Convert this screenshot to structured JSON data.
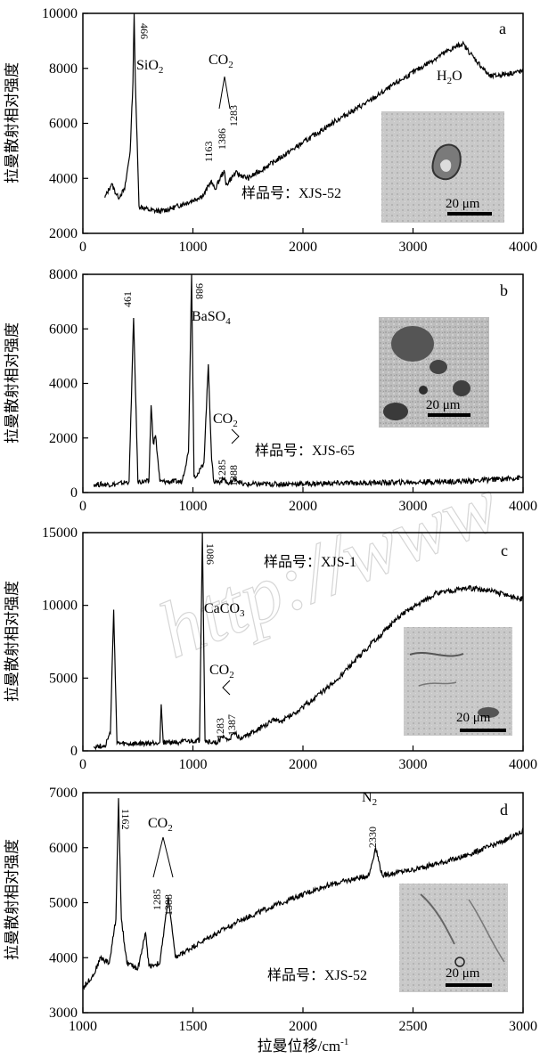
{
  "chart_data": [
    {
      "panel": "a",
      "type": "line",
      "ylabel": "拉曼散射相对强度",
      "xlim": [
        0,
        4000
      ],
      "ylim": [
        2000,
        10000
      ],
      "xticks": [
        0,
        1000,
        2000,
        3000,
        4000
      ],
      "yticks": [
        2000,
        4000,
        6000,
        8000,
        10000
      ],
      "x": [
        200,
        260,
        320,
        380,
        430,
        455,
        466,
        477,
        510,
        600,
        700,
        800,
        900,
        1000,
        1100,
        1163,
        1200,
        1283,
        1300,
        1386,
        1500,
        1700,
        2000,
        2300,
        2600,
        2900,
        3100,
        3300,
        3450,
        3550,
        3700,
        3850,
        4000
      ],
      "y": [
        3300,
        3800,
        3300,
        3600,
        5000,
        7500,
        10000,
        7500,
        3000,
        2850,
        2800,
        2900,
        3050,
        3200,
        3400,
        3900,
        3600,
        4300,
        3750,
        4200,
        4000,
        4500,
        5300,
        6100,
        6800,
        7600,
        8100,
        8600,
        8900,
        8400,
        7700,
        7800,
        7900
      ],
      "sample_label": "样品号：XJS-52",
      "compound_labels": [
        {
          "text": "SiO",
          "sub": "2"
        },
        {
          "text": "CO",
          "sub": "2"
        },
        {
          "text": "H",
          "sub": "2",
          "tail": "O"
        }
      ],
      "peak_labels": [
        "466",
        "1163",
        "1386",
        "1283"
      ],
      "scale_bar": "20 μm"
    },
    {
      "panel": "b",
      "type": "line",
      "ylabel": "拉曼散射相对强度",
      "xlim": [
        0,
        4000
      ],
      "ylim": [
        0,
        8000
      ],
      "xticks": [
        0,
        1000,
        2000,
        3000,
        4000
      ],
      "yticks": [
        0,
        2000,
        4000,
        6000,
        8000
      ],
      "x": [
        100,
        300,
        420,
        461,
        500,
        600,
        620,
        640,
        660,
        700,
        900,
        960,
        988,
        1010,
        1050,
        1100,
        1140,
        1170,
        1190,
        1250,
        1285,
        1320,
        1388,
        1450,
        2000,
        2500,
        3000,
        3500,
        4000
      ],
      "y": [
        300,
        300,
        400,
        6400,
        400,
        400,
        3200,
        1800,
        2100,
        400,
        400,
        1500,
        8000,
        600,
        700,
        1100,
        4700,
        1200,
        400,
        400,
        500,
        300,
        500,
        300,
        320,
        350,
        380,
        420,
        550
      ],
      "sample_label": "样品号：XJS-65",
      "compound_labels": [
        {
          "text": "BaSO",
          "sub": "4"
        },
        {
          "text": "CO",
          "sub": "2"
        }
      ],
      "peak_labels": [
        "461",
        "988",
        "1285",
        "1388"
      ],
      "scale_bar": "20 μm"
    },
    {
      "panel": "c",
      "type": "line",
      "ylabel": "拉曼散射相对强度",
      "xlim": [
        0,
        4000
      ],
      "ylim": [
        0,
        15000
      ],
      "xticks": [
        0,
        1000,
        2000,
        3000,
        4000
      ],
      "yticks": [
        0,
        5000,
        10000,
        15000
      ],
      "x": [
        100,
        200,
        250,
        280,
        310,
        400,
        600,
        700,
        712,
        730,
        900,
        1060,
        1086,
        1110,
        1200,
        1283,
        1310,
        1387,
        1420,
        1500,
        1600,
        1750,
        1800,
        2000,
        2300,
        2600,
        2900,
        3200,
        3500,
        3700,
        4000
      ],
      "y": [
        300,
        350,
        1200,
        9700,
        500,
        450,
        500,
        600,
        3200,
        600,
        600,
        700,
        15000,
        700,
        500,
        1000,
        700,
        1200,
        900,
        1100,
        1500,
        2200,
        2000,
        3000,
        4800,
        7200,
        9400,
        10800,
        11200,
        11000,
        10400
      ],
      "sample_label": "样品号：XJS-1",
      "compound_labels": [
        {
          "text": "CaCO",
          "sub": "3"
        },
        {
          "text": "CO",
          "sub": "2"
        }
      ],
      "peak_labels": [
        "1086",
        "1283",
        "1387"
      ],
      "scale_bar": "20 μm"
    },
    {
      "panel": "d",
      "type": "line",
      "ylabel": "拉曼散射相对强度",
      "xlabel": "拉曼位移/cm",
      "xlabel_sup": "-1",
      "xlim": [
        1000,
        3000
      ],
      "ylim": [
        3000,
        7000
      ],
      "xticks": [
        1000,
        1500,
        2000,
        2500,
        3000
      ],
      "yticks": [
        3000,
        4000,
        5000,
        6000,
        7000
      ],
      "x": [
        1000,
        1050,
        1080,
        1120,
        1150,
        1162,
        1175,
        1200,
        1250,
        1285,
        1300,
        1350,
        1388,
        1420,
        1500,
        1700,
        1900,
        2100,
        2300,
        2330,
        2360,
        2500,
        2700,
        2900,
        3000
      ],
      "y": [
        3450,
        3700,
        4000,
        3900,
        4700,
        6900,
        4700,
        3900,
        3800,
        4450,
        3850,
        3900,
        5100,
        4000,
        4200,
        4650,
        5000,
        5300,
        5500,
        6000,
        5500,
        5600,
        5800,
        6100,
        6300
      ],
      "sample_label": "样品号：XJS-52",
      "compound_labels": [
        {
          "text": "CO",
          "sub": "2"
        },
        {
          "text": "N",
          "sub": "2"
        }
      ],
      "peak_labels": [
        "1162",
        "1285",
        "1388",
        "2330"
      ],
      "scale_bar": "20 μm"
    }
  ],
  "watermark": "http://www"
}
